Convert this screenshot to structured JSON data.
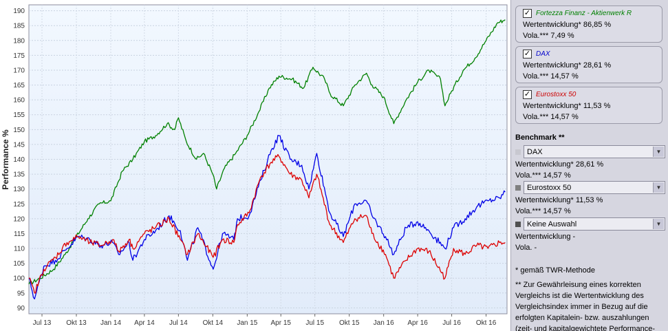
{
  "chart_data": {
    "type": "line",
    "ylabel": "Performance %",
    "ylim": [
      88,
      192
    ],
    "yticks": [
      90,
      95,
      100,
      105,
      110,
      115,
      120,
      125,
      130,
      135,
      140,
      145,
      150,
      155,
      160,
      165,
      170,
      175,
      180,
      185,
      190
    ],
    "xticks": [
      "Jul 13",
      "Okt 13",
      "Jan 14",
      "Apr 14",
      "Jul 14",
      "Okt 14",
      "Jan 15",
      "Apr 15",
      "Jul 15",
      "Okt 15",
      "Jan 16",
      "Apr 16",
      "Jul 16",
      "Okt 16"
    ],
    "x_domain": [
      "2013-06-10",
      "2016-12-10"
    ],
    "grid": true,
    "series": [
      {
        "name": "Fortezza Finanz - Aktienwerk R",
        "color": "#008000",
        "x": [
          "2013-06-10",
          "2013-07-10",
          "2013-08-15",
          "2013-09-15",
          "2013-10-15",
          "2013-11-15",
          "2013-12-15",
          "2014-01-15",
          "2014-02-15",
          "2014-03-15",
          "2014-04-15",
          "2014-05-15",
          "2014-06-15",
          "2014-07-05",
          "2014-07-15",
          "2014-08-05",
          "2014-09-01",
          "2014-09-20",
          "2014-10-15",
          "2014-10-25",
          "2014-11-15",
          "2014-12-15",
          "2015-01-15",
          "2015-02-15",
          "2015-03-15",
          "2015-04-10",
          "2015-05-15",
          "2015-06-15",
          "2015-07-10",
          "2015-08-10",
          "2015-08-25",
          "2015-09-29",
          "2015-10-30",
          "2015-11-30",
          "2015-12-15",
          "2016-01-15",
          "2016-02-11",
          "2016-03-15",
          "2016-04-15",
          "2016-05-15",
          "2016-06-15",
          "2016-06-27",
          "2016-07-15",
          "2016-08-15",
          "2016-09-15",
          "2016-10-15",
          "2016-11-15",
          "2016-12-05"
        ],
        "values": [
          98,
          100,
          103,
          108,
          114,
          120,
          125,
          126,
          136,
          140,
          146,
          148,
          152,
          150,
          154,
          146,
          140,
          142,
          135,
          130,
          137,
          142,
          148,
          156,
          164,
          168,
          167,
          164,
          171,
          167,
          162,
          158,
          165,
          169,
          165,
          161,
          152,
          160,
          166,
          170,
          167,
          158,
          163,
          170,
          174,
          180,
          186,
          187
        ]
      },
      {
        "name": "DAX",
        "color": "#0000e6",
        "x": [
          "2013-06-10",
          "2013-06-25",
          "2013-07-20",
          "2013-08-20",
          "2013-09-20",
          "2013-10-20",
          "2013-11-20",
          "2013-12-20",
          "2014-01-20",
          "2014-02-05",
          "2014-03-05",
          "2014-03-15",
          "2014-04-15",
          "2014-05-15",
          "2014-06-20",
          "2014-07-20",
          "2014-08-08",
          "2014-09-05",
          "2014-10-16",
          "2014-11-10",
          "2014-12-10",
          "2014-12-20",
          "2015-01-20",
          "2015-02-20",
          "2015-03-20",
          "2015-04-10",
          "2015-05-10",
          "2015-06-10",
          "2015-06-29",
          "2015-07-20",
          "2015-08-24",
          "2015-09-29",
          "2015-10-30",
          "2015-11-30",
          "2015-12-15",
          "2016-01-20",
          "2016-02-11",
          "2016-03-15",
          "2016-04-15",
          "2016-05-15",
          "2016-06-27",
          "2016-07-20",
          "2016-08-20",
          "2016-09-20",
          "2016-10-20",
          "2016-11-20",
          "2016-12-05"
        ],
        "values": [
          100,
          93,
          104,
          106,
          110,
          114,
          113,
          111,
          112,
          108,
          112,
          106,
          113,
          116,
          121,
          116,
          106,
          117,
          103,
          115,
          113,
          120,
          121,
          133,
          143,
          148,
          140,
          138,
          130,
          142,
          122,
          114,
          125,
          126,
          121,
          114,
          108,
          117,
          119,
          116,
          110,
          117,
          120,
          124,
          126,
          127,
          129
        ]
      },
      {
        "name": "Eurostoxx 50",
        "color": "#dd0000",
        "x": [
          "2013-06-10",
          "2013-06-25",
          "2013-07-20",
          "2013-08-20",
          "2013-09-20",
          "2013-10-20",
          "2013-11-20",
          "2013-12-20",
          "2014-01-20",
          "2014-02-05",
          "2014-03-05",
          "2014-03-15",
          "2014-04-15",
          "2014-05-15",
          "2014-06-20",
          "2014-07-20",
          "2014-08-08",
          "2014-09-05",
          "2014-10-16",
          "2014-11-10",
          "2014-12-10",
          "2014-12-20",
          "2015-01-20",
          "2015-02-20",
          "2015-03-20",
          "2015-04-10",
          "2015-05-10",
          "2015-06-10",
          "2015-06-29",
          "2015-07-20",
          "2015-08-24",
          "2015-09-29",
          "2015-10-30",
          "2015-11-30",
          "2015-12-15",
          "2016-01-20",
          "2016-02-11",
          "2016-03-15",
          "2016-04-15",
          "2016-05-15",
          "2016-06-27",
          "2016-07-20",
          "2016-08-20",
          "2016-09-20",
          "2016-10-20",
          "2016-11-20",
          "2016-12-05"
        ],
        "values": [
          100,
          95,
          103,
          107,
          112,
          114,
          112,
          111,
          113,
          109,
          113,
          110,
          115,
          117,
          120,
          113,
          108,
          115,
          107,
          113,
          112,
          118,
          122,
          134,
          139,
          141,
          135,
          133,
          127,
          135,
          118,
          112,
          120,
          121,
          115,
          108,
          100,
          106,
          110,
          109,
          100,
          110,
          108,
          111,
          110,
          112,
          112
        ]
      }
    ]
  },
  "sidebar": {
    "funds": [
      {
        "name": "Fortezza Finanz - Aktienwerk R",
        "color": "#008000",
        "perf": "Wertentwicklung* 86,85 %",
        "vola": "Vola.*** 7,49 %",
        "checkmark": "✓"
      },
      {
        "name": "DAX",
        "color": "#0000cc",
        "perf": "Wertentwicklung* 28,61 %",
        "vola": "Vola.*** 14,57 %",
        "checkmark": "✓"
      },
      {
        "name": "Eurostoxx 50",
        "color": "#cc0000",
        "perf": "Wertentwicklung* 11,53 %",
        "vola": "Vola.*** 14,57 %",
        "checkmark": "✓"
      }
    ],
    "benchmark_title": "Benchmark **",
    "benchmarks": [
      {
        "selected": "DAX",
        "square_color": "#c8c8d0",
        "perf": "Wertentwicklung* 28,61 %",
        "vola": "Vola.*** 14,57 %",
        "arrow": "▼"
      },
      {
        "selected": "Eurostoxx 50",
        "square_color": "#808080",
        "perf": "Wertentwicklung* 11,53 %",
        "vola": "Vola.*** 14,57 %",
        "arrow": "▼"
      },
      {
        "selected": "Keine Auswahl",
        "square_color": "#505050",
        "perf": "Wertentwicklung -",
        "vola": "Vola. -",
        "arrow": "▼"
      }
    ],
    "footnote1": "* gemäß TWR-Methode",
    "footnote2": "** Zur Gewährleisung eines korrekten Vergleichs ist die Wertentwicklung des Vergleichsindex immer in Bezug auf die erfolgten Kapitalein- bzw. auszahlungen (zeit- und kapitalgewichtete Performance-"
  }
}
